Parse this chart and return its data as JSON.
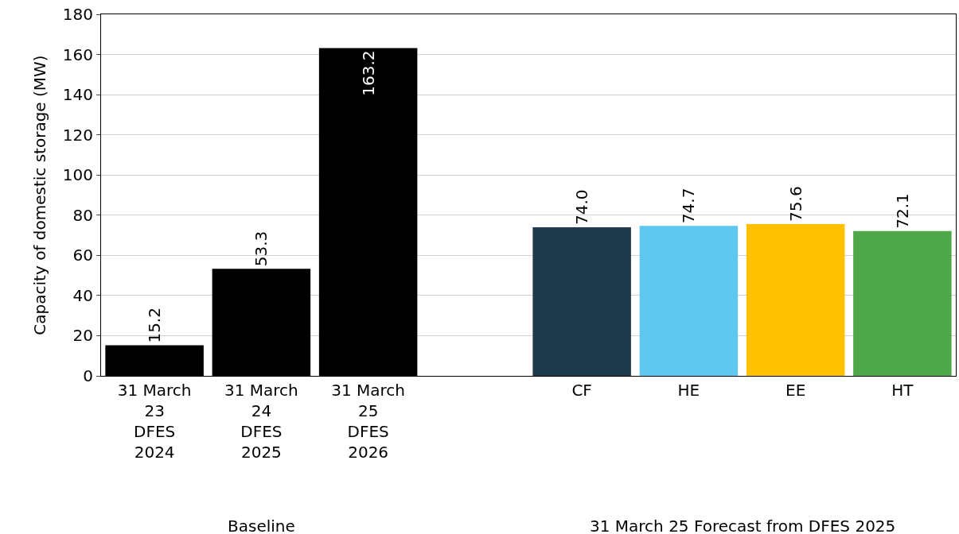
{
  "chart_data": {
    "type": "bar",
    "ylabel": "Capacity of domestic storage (MW)",
    "categories": [
      "31 March\n23\nDFES\n2024",
      "31 March\n24\nDFES\n2025",
      "31 March\n25\nDFES\n2026",
      null,
      "CF",
      "HE",
      "EE",
      "HT"
    ],
    "values": [
      15.2,
      53.3,
      163.2,
      null,
      74.0,
      74.7,
      75.6,
      72.1
    ],
    "value_labels": [
      "15.2",
      "53.3",
      "163.2",
      null,
      "74.0",
      "74.7",
      "75.6",
      "72.1"
    ],
    "colors": [
      "#000000",
      "#000000",
      "#000000",
      "#000000",
      "#1f3a4a",
      "#5ec8f0",
      "#ffc000",
      "#4ea84a"
    ],
    "ylim": [
      0,
      180
    ],
    "yticks": [
      0,
      20,
      40,
      60,
      80,
      100,
      120,
      140,
      160,
      180
    ],
    "grid": "y",
    "annotations": [
      "Baseline",
      "31 March 25 Forecast from DFES 2025"
    ]
  }
}
